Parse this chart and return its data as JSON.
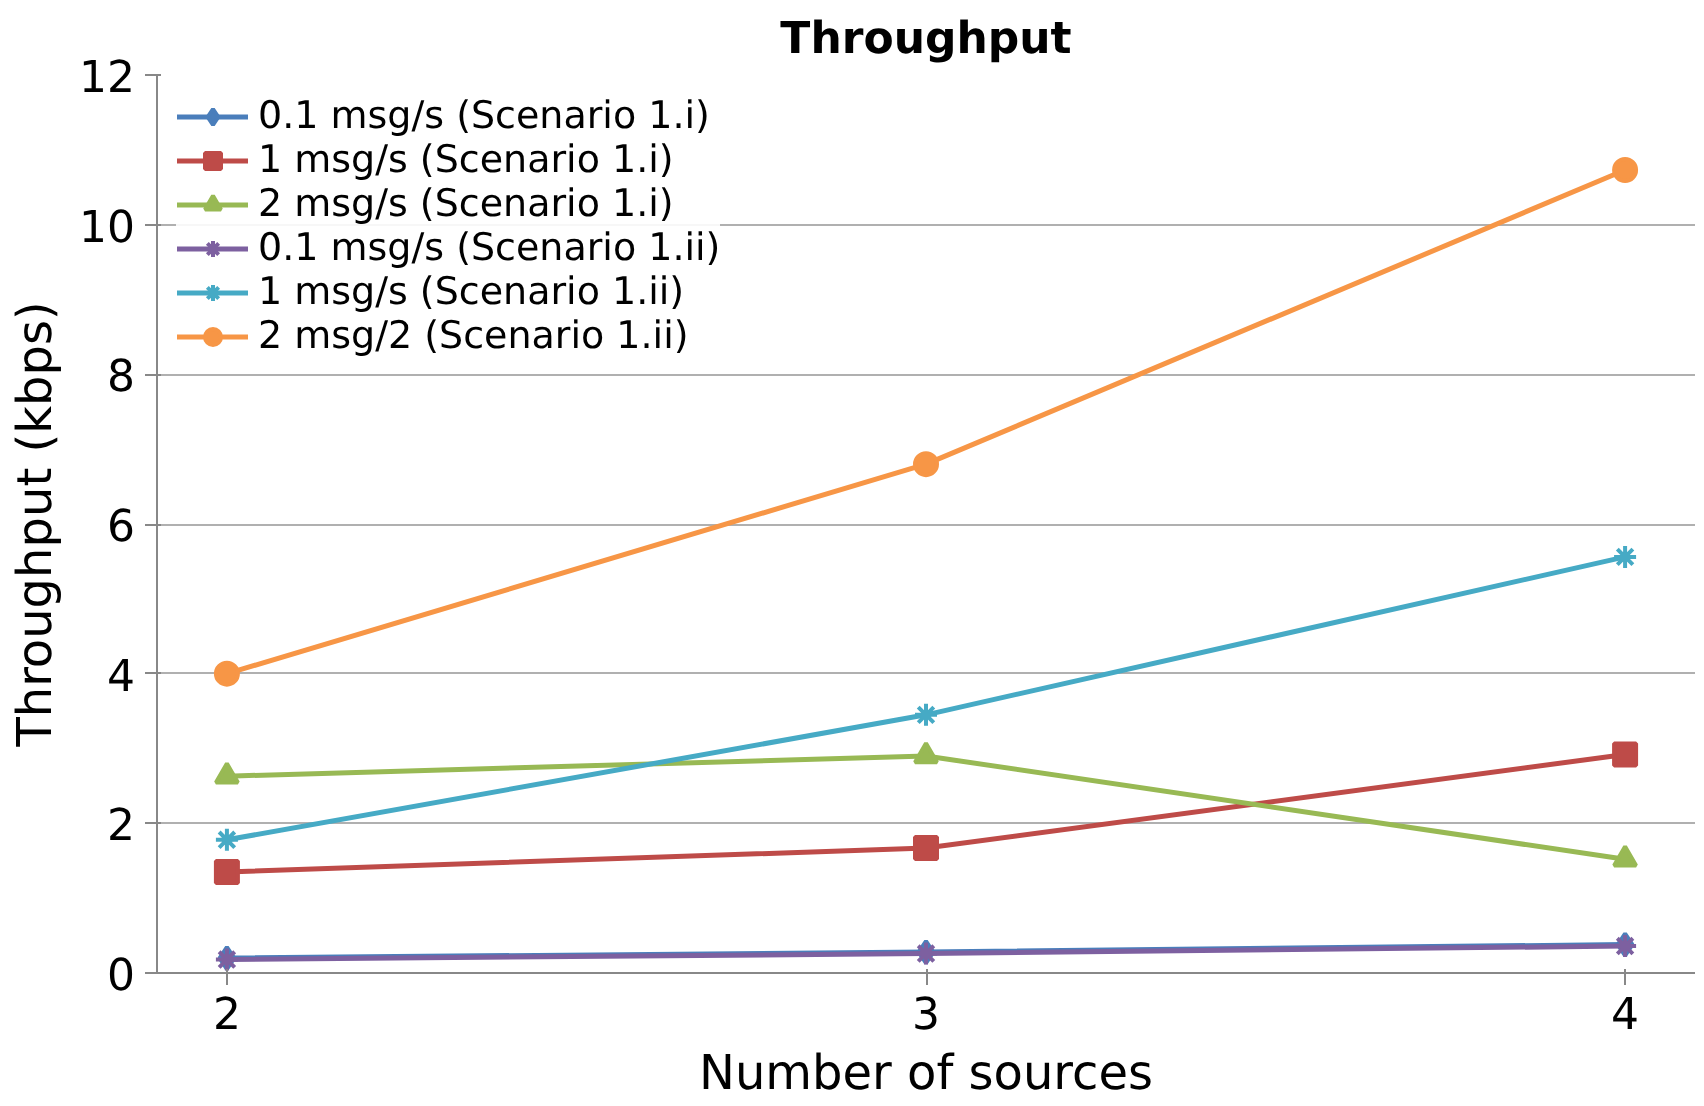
{
  "chart_data": {
    "type": "line",
    "title": "Throughput",
    "xlabel": "Number of sources",
    "ylabel": "Throughput (kbps)",
    "x": [
      2,
      3,
      4
    ],
    "xlim": [
      1.9,
      4.1
    ],
    "xticks": [
      2,
      3,
      4
    ],
    "ylim": [
      0,
      12
    ],
    "yticks": [
      0,
      2,
      4,
      6,
      8,
      10,
      12
    ],
    "grid": "y",
    "legend": "top left",
    "line_style": "solid",
    "series": [
      {
        "name": "0.1 msg/s (Scenario 1.i)",
        "color": "#4a7ebb",
        "marker": "diamond",
        "values": [
          0.2,
          0.28,
          0.38
        ]
      },
      {
        "name": "1 msg/s (Scenario 1.i)",
        "color": "#be4b48",
        "marker": "square",
        "values": [
          1.35,
          1.67,
          2.92
        ]
      },
      {
        "name": "2 msg/s (Scenario 1.i)",
        "color": "#98b954",
        "marker": "triangle",
        "values": [
          2.63,
          2.9,
          1.52
        ]
      },
      {
        "name": "0.1 msg/s (Scenario 1.ii)",
        "color": "#7d60a0",
        "marker": "cross",
        "values": [
          0.18,
          0.26,
          0.36
        ]
      },
      {
        "name": "1 msg/s (Scenario 1.ii)",
        "color": "#46aac5",
        "marker": "cross",
        "values": [
          1.78,
          3.45,
          5.56
        ]
      },
      {
        "name": "2 msg/2 (Scenario 1.ii)",
        "color": "#f79646",
        "marker": "circle",
        "values": [
          4.0,
          6.8,
          10.73
        ]
      }
    ]
  }
}
